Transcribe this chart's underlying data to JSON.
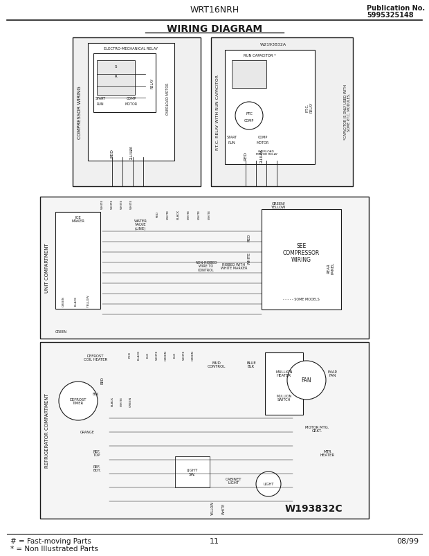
{
  "title_center": "WRT16NRH",
  "title_right_line1": "Publication No.",
  "title_right_line2": "5995325148",
  "diagram_title": "WIRING DIAGRAM",
  "footer_left_line1": "# = Fast-moving Parts",
  "footer_left_line2": "* = Non Illustrated Parts",
  "footer_center": "11",
  "footer_right": "08/99",
  "diagram_id": "W193832C",
  "bg_color": "#ffffff",
  "line_color": "#1a1a1a",
  "text_color": "#1a1a1a"
}
